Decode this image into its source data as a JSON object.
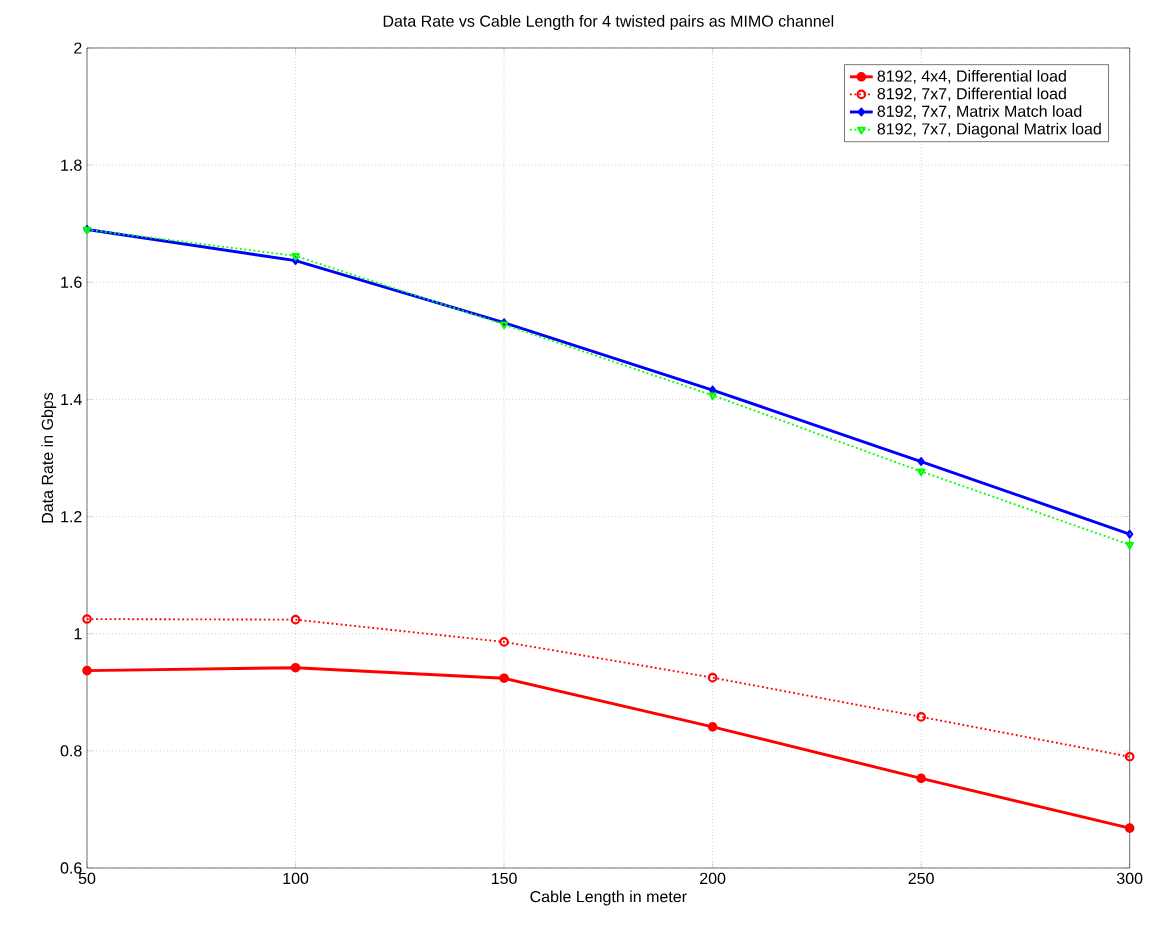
{
  "chart_data": {
    "type": "line",
    "title": "Data Rate vs Cable Length for 4 twisted pairs as MIMO channel",
    "xlabel": "Cable Length in meter",
    "ylabel": "Data Rate in Gbps",
    "x": [
      50,
      100,
      150,
      200,
      250,
      300
    ],
    "series": [
      {
        "name": "8192, 4x4, Differential load",
        "color": "#ff0000",
        "marker": "circle",
        "line_style": "solid",
        "values": [
          0.937,
          0.942,
          0.924,
          0.841,
          0.753,
          0.668
        ]
      },
      {
        "name": "8192, 7x7, Differential load",
        "color": "#ff0000",
        "marker": "circle",
        "line_style": "dotted",
        "values": [
          1.025,
          1.024,
          0.986,
          0.925,
          0.858,
          0.79
        ]
      },
      {
        "name": "8192, 7x7, Matrix Match load",
        "color": "#0000ff",
        "marker": "diamond",
        "line_style": "solid",
        "values": [
          1.69,
          1.637,
          1.531,
          1.416,
          1.294,
          1.17
        ]
      },
      {
        "name": "8192, 7x7, Diagonal Matrix load",
        "color": "#00ff00",
        "marker": "triangle",
        "line_style": "dotted",
        "values": [
          1.69,
          1.645,
          1.528,
          1.407,
          1.277,
          1.152
        ]
      }
    ],
    "xlim": [
      50,
      300
    ],
    "ylim": [
      0.6,
      2
    ],
    "xticks": [
      50,
      100,
      150,
      200,
      250,
      300
    ],
    "yticks": [
      {
        "value": 0.6,
        "label": "0.6"
      },
      {
        "value": 0.8,
        "label": "0.8"
      },
      1,
      {
        "value": 1.2,
        "label": "1.2"
      },
      {
        "value": 1.4,
        "label": "1.4"
      },
      {
        "value": 1.6,
        "label": "1.6"
      },
      {
        "value": 1.8,
        "label": "1.8"
      },
      2
    ],
    "grid": true,
    "legend": "top right"
  }
}
